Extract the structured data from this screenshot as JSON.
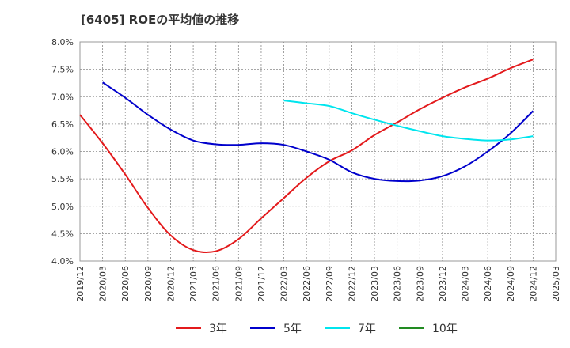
{
  "chart_data": {
    "type": "line",
    "title": "[6405]  ROEの平均値の推移",
    "xlabel": "",
    "ylabel": "",
    "ylim": [
      4.0,
      8.0
    ],
    "y_ticks": [
      4.0,
      4.5,
      5.0,
      5.5,
      6.0,
      6.5,
      7.0,
      7.5,
      8.0
    ],
    "y_tick_labels": [
      "4.0%",
      "4.5%",
      "5.0%",
      "5.5%",
      "6.0%",
      "6.5%",
      "7.0%",
      "7.5%",
      "8.0%"
    ],
    "x_tick_labels": [
      "2019/12",
      "2020/03",
      "2020/06",
      "2020/09",
      "2020/12",
      "2021/03",
      "2021/06",
      "2021/09",
      "2021/12",
      "2022/03",
      "2022/06",
      "2022/09",
      "2022/12",
      "2023/03",
      "2023/06",
      "2023/09",
      "2023/12",
      "2024/03",
      "2024/06",
      "2024/09",
      "2024/12",
      "2025/03"
    ],
    "grid": true,
    "legend_position": "bottom",
    "series": [
      {
        "name": "3年",
        "color": "#e31a1c",
        "x": [
          "2019/12",
          "2020/03",
          "2020/06",
          "2020/09",
          "2020/12",
          "2021/03",
          "2021/06",
          "2021/09",
          "2021/12",
          "2022/03",
          "2022/06",
          "2022/09",
          "2022/12",
          "2023/03",
          "2023/06",
          "2023/09",
          "2023/12",
          "2024/03",
          "2024/06",
          "2024/09",
          "2024/12"
        ],
        "values": [
          6.67,
          6.15,
          5.58,
          4.97,
          4.47,
          4.2,
          4.18,
          4.4,
          4.78,
          5.15,
          5.52,
          5.82,
          6.02,
          6.3,
          6.53,
          6.77,
          6.98,
          7.17,
          7.33,
          7.52,
          7.68
        ]
      },
      {
        "name": "5年",
        "color": "#0000cc",
        "x": [
          "2020/03",
          "2020/06",
          "2020/09",
          "2020/12",
          "2021/03",
          "2021/06",
          "2021/09",
          "2021/12",
          "2022/03",
          "2022/06",
          "2022/09",
          "2022/12",
          "2023/03",
          "2023/06",
          "2023/09",
          "2023/12",
          "2024/03",
          "2024/06",
          "2024/09",
          "2024/12"
        ],
        "values": [
          7.26,
          6.98,
          6.67,
          6.4,
          6.2,
          6.13,
          6.12,
          6.15,
          6.12,
          6.0,
          5.85,
          5.62,
          5.5,
          5.46,
          5.47,
          5.55,
          5.73,
          6.0,
          6.33,
          6.74
        ]
      },
      {
        "name": "7年",
        "color": "#00e5ee",
        "x": [
          "2022/03",
          "2022/06",
          "2022/09",
          "2022/12",
          "2023/03",
          "2023/06",
          "2023/09",
          "2023/12",
          "2024/03",
          "2024/06",
          "2024/09",
          "2024/12"
        ],
        "values": [
          6.93,
          6.88,
          6.83,
          6.7,
          6.58,
          6.47,
          6.37,
          6.28,
          6.23,
          6.2,
          6.22,
          6.28
        ]
      },
      {
        "name": "10年",
        "color": "#228b22",
        "x": [],
        "values": []
      }
    ]
  }
}
